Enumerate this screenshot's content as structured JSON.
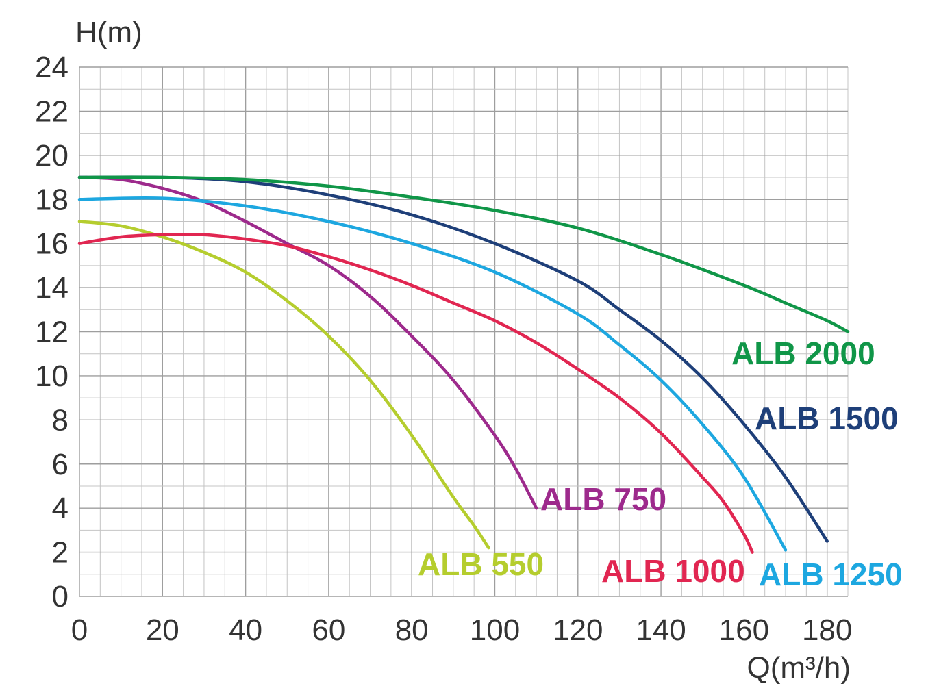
{
  "chart_data": {
    "type": "line",
    "title": "",
    "xlabel": "Q(m³/h)",
    "ylabel": "H(m)",
    "xlim": [
      0,
      185
    ],
    "ylim": [
      0,
      24
    ],
    "grid": true,
    "x_ticks": [
      "0",
      "20",
      "40",
      "60",
      "80",
      "100",
      "120",
      "140",
      "160",
      "180"
    ],
    "y_ticks": [
      "0",
      "2",
      "4",
      "6",
      "8",
      "10",
      "12",
      "14",
      "16",
      "18",
      "20",
      "22",
      "24"
    ],
    "series": [
      {
        "name": "ALB 550",
        "color": "#b5cd2e",
        "x": [
          0,
          10,
          20,
          30,
          40,
          50,
          60,
          70,
          80,
          90,
          95,
          98.5
        ],
        "y": [
          17,
          16.8,
          16.3,
          15.6,
          14.7,
          13.4,
          11.8,
          9.8,
          7.3,
          4.5,
          3.2,
          2.2
        ]
      },
      {
        "name": "ALB 750",
        "color": "#9d2a8c",
        "x": [
          0,
          10,
          20,
          30,
          40,
          50,
          60,
          70,
          80,
          90,
          100,
          105,
          110
        ],
        "y": [
          19,
          18.9,
          18.5,
          17.9,
          17.0,
          16.0,
          15.0,
          13.6,
          11.8,
          9.8,
          7.3,
          5.8,
          4.0
        ]
      },
      {
        "name": "ALB 1000",
        "color": "#e12651",
        "x": [
          0,
          10,
          20,
          30,
          40,
          50,
          60,
          70,
          80,
          90,
          100,
          110,
          120,
          130,
          140,
          150,
          155,
          160,
          162
        ],
        "y": [
          16,
          16.3,
          16.4,
          16.4,
          16.2,
          15.9,
          15.4,
          14.8,
          14.1,
          13.3,
          12.5,
          11.5,
          10.3,
          9.0,
          7.4,
          5.4,
          4.3,
          2.8,
          2.0
        ]
      },
      {
        "name": "ALB 1250",
        "color": "#1da7e0",
        "x": [
          0,
          20,
          40,
          60,
          80,
          100,
          120,
          130,
          140,
          150,
          160,
          170
        ],
        "y": [
          18,
          18.05,
          17.7,
          17.0,
          16.0,
          14.7,
          12.8,
          11.4,
          9.8,
          7.8,
          5.4,
          2.1
        ]
      },
      {
        "name": "ALB 1500",
        "color": "#1e3f79",
        "x": [
          0,
          20,
          40,
          60,
          80,
          100,
          120,
          130,
          140,
          150,
          160,
          170,
          180
        ],
        "y": [
          19,
          19.0,
          18.8,
          18.2,
          17.3,
          16.0,
          14.3,
          13.0,
          11.6,
          9.9,
          7.8,
          5.4,
          2.5
        ]
      },
      {
        "name": "ALB 2000",
        "color": "#109648",
        "x": [
          0,
          20,
          40,
          60,
          80,
          100,
          120,
          140,
          160,
          170,
          180,
          185
        ],
        "y": [
          19,
          19.0,
          18.9,
          18.6,
          18.1,
          17.5,
          16.7,
          15.5,
          14.1,
          13.3,
          12.5,
          12.0
        ]
      }
    ]
  }
}
